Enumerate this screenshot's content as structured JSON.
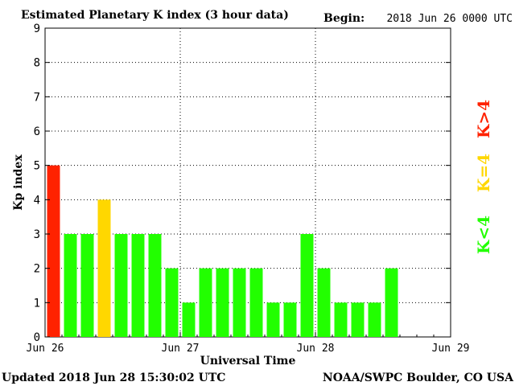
{
  "header": {
    "title": "Estimated Planetary K index (3 hour data)",
    "begin_label": "Begin:",
    "begin_value": "2018 Jun 26 0000 UTC"
  },
  "footer": {
    "updated": "Updated 2018 Jun 28 15:30:02 UTC",
    "credit": "NOAA/SWPC Boulder, CO USA"
  },
  "legend": {
    "gt4": "K>4",
    "eq4": "K=4",
    "lt4": "K<4"
  },
  "colors": {
    "gt4": "#ff2200",
    "eq4": "#ffd700",
    "lt4": "#22ff00",
    "grid": "#000000"
  },
  "chart_data": {
    "type": "bar",
    "title": "Estimated Planetary K index (3 hour data)",
    "xlabel": "Universal Time",
    "ylabel": "Kp index",
    "ylim": [
      0,
      9
    ],
    "yticks": [
      "0",
      "1",
      "2",
      "3",
      "4",
      "5",
      "6",
      "7",
      "8",
      "9"
    ],
    "xticks": [
      "Jun 26",
      "Jun 27",
      "Jun 28",
      "Jun 29"
    ],
    "xlim": [
      "2018-06-26T00:00Z",
      "2018-06-29T00:00Z"
    ],
    "grid": true,
    "bar_interval_hours": 3,
    "categories": [
      "2018-06-26 00:00",
      "2018-06-26 03:00",
      "2018-06-26 06:00",
      "2018-06-26 09:00",
      "2018-06-26 12:00",
      "2018-06-26 15:00",
      "2018-06-26 18:00",
      "2018-06-26 21:00",
      "2018-06-27 00:00",
      "2018-06-27 03:00",
      "2018-06-27 06:00",
      "2018-06-27 09:00",
      "2018-06-27 12:00",
      "2018-06-27 15:00",
      "2018-06-27 18:00",
      "2018-06-27 21:00",
      "2018-06-28 00:00",
      "2018-06-28 03:00",
      "2018-06-28 06:00",
      "2018-06-28 09:00",
      "2018-06-28 12:00"
    ],
    "values": [
      5,
      3,
      3,
      4,
      3,
      3,
      3,
      2,
      1,
      2,
      2,
      2,
      2,
      1,
      1,
      3,
      2,
      1,
      1,
      1,
      2
    ]
  }
}
